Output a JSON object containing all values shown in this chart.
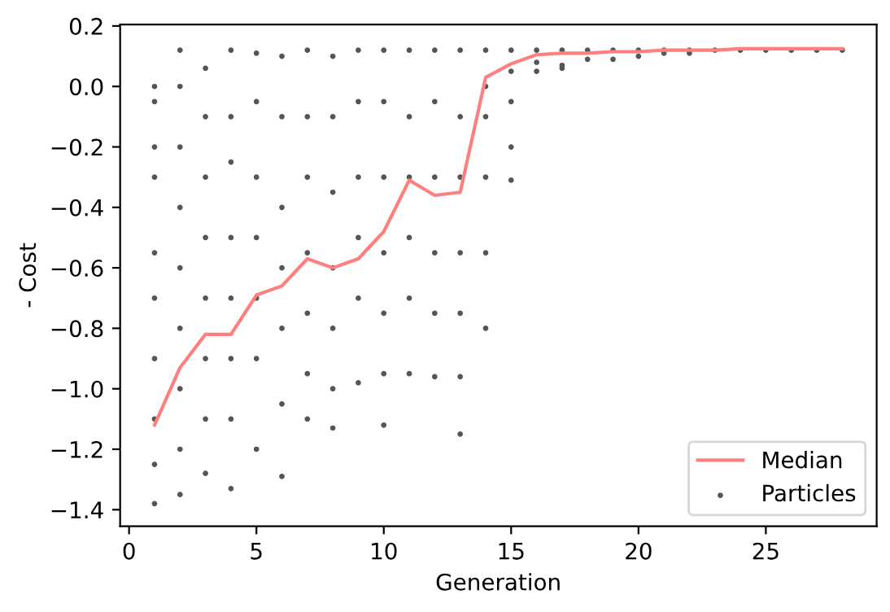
{
  "chart_data": {
    "type": "line",
    "xlabel": "Generation",
    "ylabel": "- Cost",
    "xlim": [
      -0.35,
      29.35
    ],
    "ylim": [
      -1.455,
      0.205
    ],
    "xticks": [
      0,
      5,
      10,
      15,
      20,
      25
    ],
    "yticks": [
      {
        "value": -1.4,
        "label": "−1.4"
      },
      {
        "value": -1.2,
        "label": "−1.2"
      },
      {
        "value": -1.0,
        "label": "−1.0"
      },
      {
        "value": -0.8,
        "label": "−0.8"
      },
      {
        "value": -0.6,
        "label": "−0.6"
      },
      {
        "value": -0.4,
        "label": "−0.4"
      },
      {
        "value": -0.2,
        "label": "−0.2"
      },
      {
        "value": 0.0,
        "label": "0.0"
      },
      {
        "value": 0.2,
        "label": "0.2"
      }
    ],
    "grid": false,
    "legend": "bottom right",
    "series": [
      {
        "name": "Median",
        "color": "#ff7f7f",
        "marker": "none",
        "line_style": "solid",
        "x": [
          1,
          2,
          3,
          4,
          5,
          6,
          7,
          8,
          9,
          10,
          11,
          12,
          13,
          14,
          15,
          16,
          17,
          18,
          19,
          20,
          21,
          22,
          23,
          24,
          25,
          26,
          27,
          28
        ],
        "values": [
          -1.12,
          -0.93,
          -0.82,
          -0.82,
          -0.69,
          -0.66,
          -0.57,
          -0.6,
          -0.57,
          -0.48,
          -0.31,
          -0.36,
          -0.35,
          0.03,
          0.075,
          0.105,
          0.11,
          0.11,
          0.115,
          0.115,
          0.12,
          0.12,
          0.12,
          0.125,
          0.125,
          0.125,
          0.125,
          0.125
        ]
      },
      {
        "name": "Particles",
        "type": "scatter",
        "color": "#555555",
        "marker": "circle",
        "x": [
          1,
          1,
          1,
          1,
          1,
          1,
          1,
          1,
          1,
          1,
          2,
          2,
          2,
          2,
          2,
          2,
          2,
          2,
          2,
          3,
          3,
          3,
          3,
          3,
          3,
          3,
          3,
          4,
          4,
          4,
          4,
          4,
          4,
          4,
          4,
          5,
          5,
          5,
          5,
          5,
          5,
          5,
          6,
          6,
          6,
          6,
          6,
          6,
          6,
          7,
          7,
          7,
          7,
          7,
          7,
          7,
          8,
          8,
          8,
          8,
          8,
          8,
          8,
          9,
          9,
          9,
          9,
          9,
          9,
          10,
          10,
          10,
          10,
          10,
          10,
          10,
          11,
          11,
          11,
          11,
          11,
          11,
          12,
          12,
          12,
          12,
          12,
          12,
          13,
          13,
          13,
          13,
          13,
          13,
          13,
          14,
          14,
          14,
          14,
          14,
          14,
          15,
          15,
          15,
          15,
          15,
          16,
          16,
          16,
          17,
          17,
          17,
          18,
          18,
          19,
          19,
          20,
          20,
          21,
          21,
          22,
          22,
          23,
          24,
          25,
          26,
          27,
          28
        ],
        "values": [
          0.0,
          -0.05,
          -0.2,
          -0.3,
          -0.55,
          -0.7,
          -0.9,
          -1.1,
          -1.25,
          -1.38,
          0.12,
          0.0,
          -0.2,
          -0.4,
          -0.6,
          -0.8,
          -1.0,
          -1.2,
          -1.35,
          0.06,
          -0.1,
          -0.3,
          -0.5,
          -0.7,
          -0.9,
          -1.1,
          -1.28,
          0.12,
          -0.1,
          -0.25,
          -0.5,
          -0.7,
          -0.9,
          -1.1,
          -1.33,
          0.11,
          -0.05,
          -0.3,
          -0.5,
          -0.7,
          -0.9,
          -1.2,
          0.1,
          -0.1,
          -0.4,
          -0.6,
          -0.8,
          -1.05,
          -1.29,
          0.12,
          -0.1,
          -0.3,
          -0.55,
          -0.75,
          -0.95,
          -1.1,
          0.1,
          -0.1,
          -0.35,
          -0.6,
          -0.8,
          -1.0,
          -1.13,
          0.12,
          -0.05,
          -0.3,
          -0.5,
          -0.7,
          -0.98,
          0.12,
          -0.05,
          -0.3,
          -0.55,
          -0.75,
          -0.95,
          -1.12,
          0.12,
          -0.1,
          -0.3,
          -0.5,
          -0.7,
          -0.95,
          0.12,
          -0.05,
          -0.3,
          -0.55,
          -0.75,
          -0.96,
          0.12,
          -0.1,
          -0.3,
          -0.55,
          -0.75,
          -0.96,
          -1.15,
          0.12,
          0.0,
          -0.1,
          -0.3,
          -0.55,
          -0.8,
          0.12,
          0.05,
          -0.05,
          -0.2,
          -0.31,
          0.12,
          0.08,
          0.05,
          0.12,
          0.07,
          0.06,
          0.12,
          0.09,
          0.12,
          0.09,
          0.12,
          0.1,
          0.12,
          0.11,
          0.12,
          0.11,
          0.12,
          0.12,
          0.12,
          0.12,
          0.12,
          0.12
        ]
      }
    ]
  }
}
